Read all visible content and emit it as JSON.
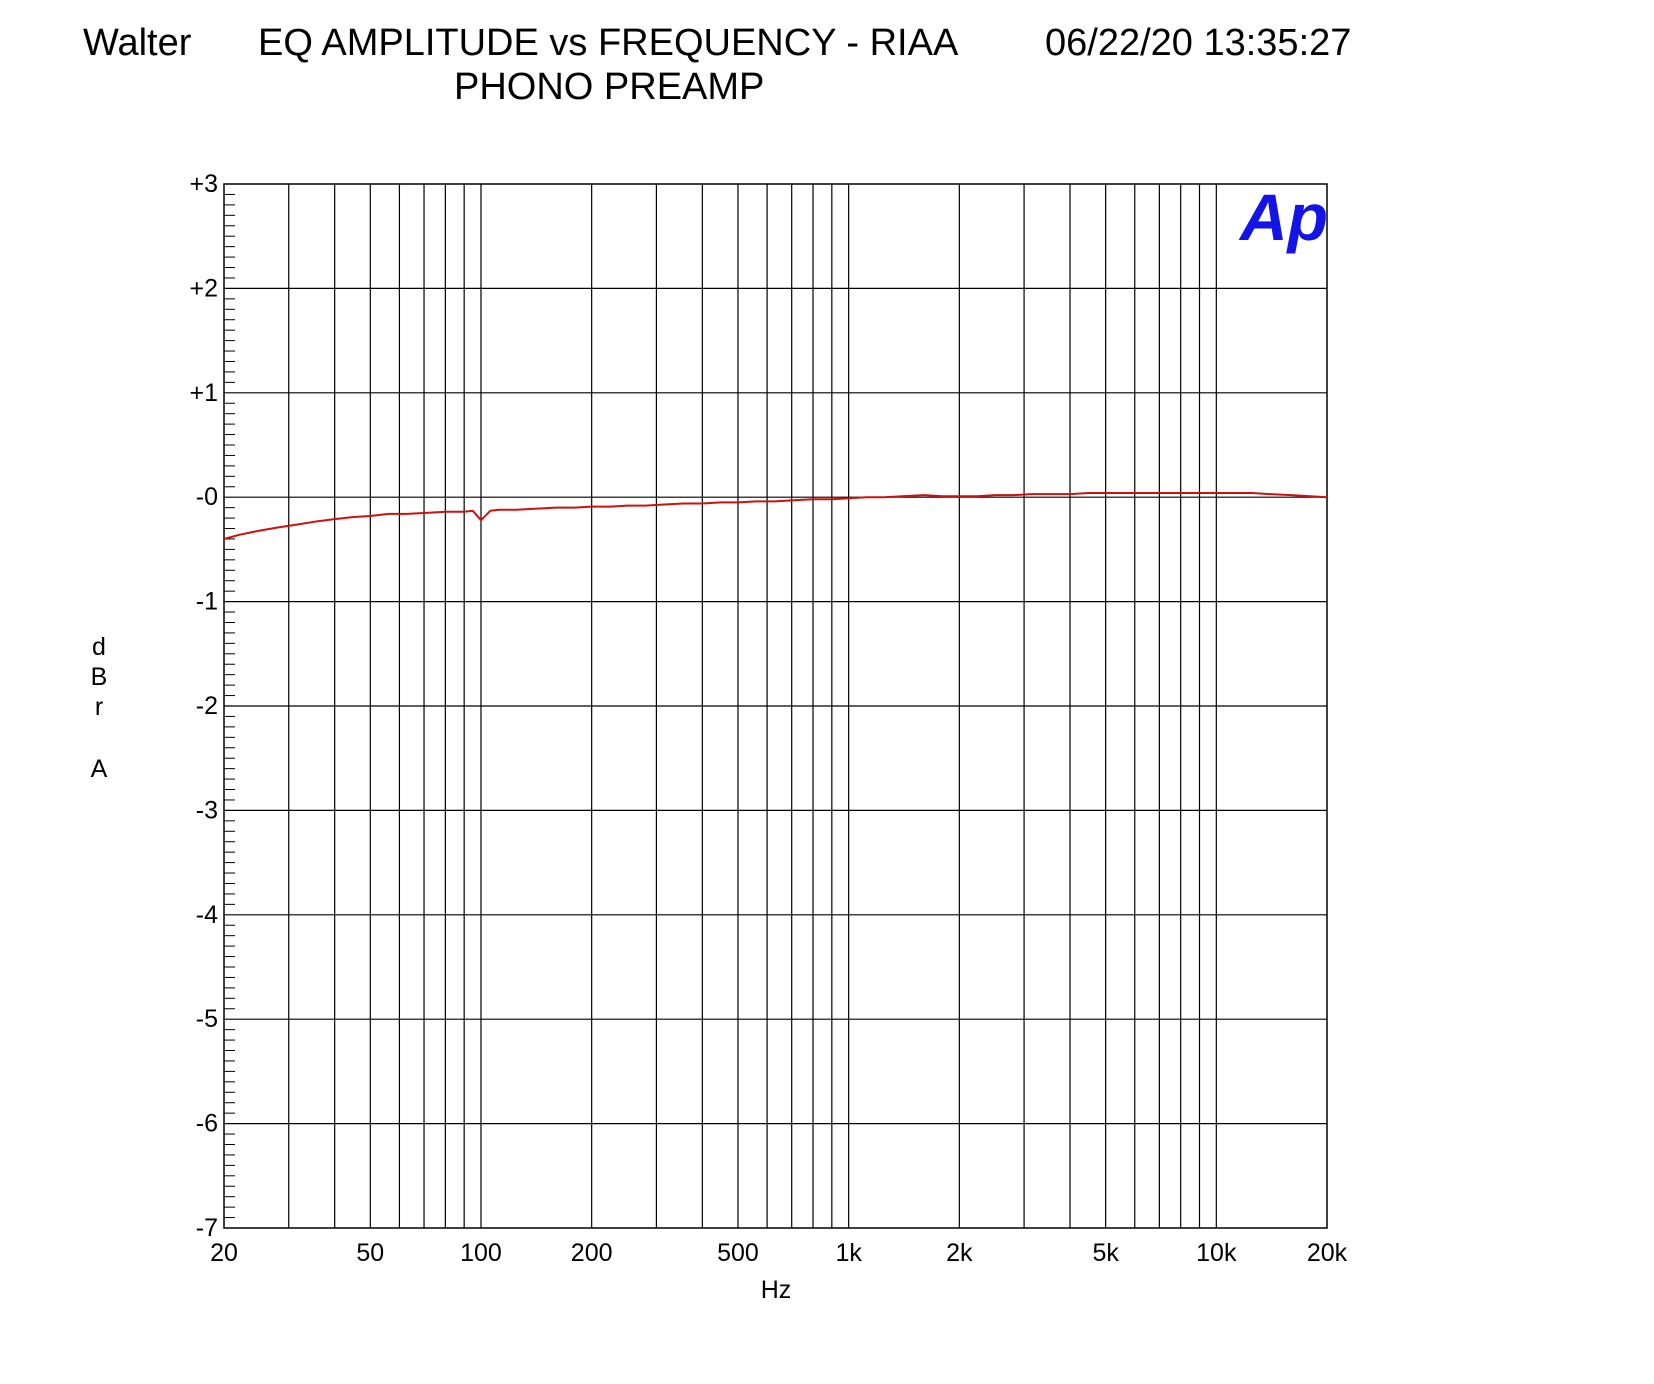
{
  "header": {
    "author": "Walter",
    "title": "EQ AMPLITUDE vs FREQUENCY - RIAA",
    "subtitle": "PHONO PREAMP",
    "timestamp": "06/22/20 13:35:27"
  },
  "logo": {
    "text": "Ap",
    "color": "#1414e6"
  },
  "colors": {
    "trace": "#cc1111",
    "grid": "#000000"
  },
  "chart_data": {
    "type": "line",
    "title": "EQ AMPLITUDE vs FREQUENCY - RIAA",
    "subtitle": "PHONO PREAMP",
    "xlabel": "Hz",
    "ylabel": "dBr A",
    "ylabel_letters": [
      "d",
      "B",
      "r",
      "A"
    ],
    "x_scale": "log",
    "xlim": [
      20,
      20000
    ],
    "ylim": [
      -7,
      3
    ],
    "grid": true,
    "x_gridlines": [
      30,
      40,
      50,
      60,
      70,
      80,
      90,
      100,
      200,
      300,
      400,
      500,
      600,
      700,
      800,
      900,
      1000,
      2000,
      3000,
      4000,
      5000,
      6000,
      7000,
      8000,
      9000,
      10000
    ],
    "x_ticks": [
      {
        "value": 20,
        "label": "20"
      },
      {
        "value": 50,
        "label": "50"
      },
      {
        "value": 100,
        "label": "100"
      },
      {
        "value": 200,
        "label": "200"
      },
      {
        "value": 500,
        "label": "500"
      },
      {
        "value": 1000,
        "label": "1k"
      },
      {
        "value": 2000,
        "label": "2k"
      },
      {
        "value": 5000,
        "label": "5k"
      },
      {
        "value": 10000,
        "label": "10k"
      },
      {
        "value": 20000,
        "label": "20k"
      }
    ],
    "y_ticks": [
      {
        "value": 3,
        "label": "+3"
      },
      {
        "value": 2,
        "label": "+2"
      },
      {
        "value": 1,
        "label": "+1"
      },
      {
        "value": 0,
        "label": "-0"
      },
      {
        "value": -1,
        "label": "-1"
      },
      {
        "value": -2,
        "label": "-2"
      },
      {
        "value": -3,
        "label": "-3"
      },
      {
        "value": -4,
        "label": "-4"
      },
      {
        "value": -5,
        "label": "-5"
      },
      {
        "value": -6,
        "label": "-6"
      },
      {
        "value": -7,
        "label": "-7"
      }
    ],
    "y_minor_step": 0.1,
    "series": [
      {
        "color": "#cc1111",
        "x": [
          20,
          22,
          25,
          28,
          32,
          36,
          40,
          45,
          50,
          56,
          63,
          71,
          80,
          90,
          95,
          100,
          106,
          112,
          125,
          140,
          160,
          180,
          200,
          225,
          250,
          280,
          315,
          355,
          400,
          450,
          500,
          560,
          630,
          710,
          800,
          900,
          1000,
          1120,
          1250,
          1400,
          1600,
          1800,
          2000,
          2240,
          2500,
          2800,
          3150,
          3550,
          4000,
          4500,
          5000,
          5600,
          6300,
          7100,
          8000,
          9000,
          10000,
          11200,
          12500,
          14000,
          16000,
          18000,
          20000
        ],
        "y": [
          -0.4,
          -0.36,
          -0.32,
          -0.29,
          -0.26,
          -0.23,
          -0.21,
          -0.19,
          -0.18,
          -0.16,
          -0.16,
          -0.15,
          -0.14,
          -0.14,
          -0.13,
          -0.22,
          -0.13,
          -0.12,
          -0.12,
          -0.11,
          -0.1,
          -0.1,
          -0.09,
          -0.09,
          -0.08,
          -0.08,
          -0.07,
          -0.06,
          -0.06,
          -0.05,
          -0.05,
          -0.04,
          -0.04,
          -0.03,
          -0.02,
          -0.02,
          -0.01,
          0.0,
          0.0,
          0.01,
          0.02,
          0.01,
          0.01,
          0.01,
          0.02,
          0.02,
          0.03,
          0.03,
          0.03,
          0.04,
          0.04,
          0.04,
          0.04,
          0.04,
          0.04,
          0.04,
          0.04,
          0.04,
          0.04,
          0.03,
          0.02,
          0.01,
          0.0
        ]
      }
    ]
  }
}
